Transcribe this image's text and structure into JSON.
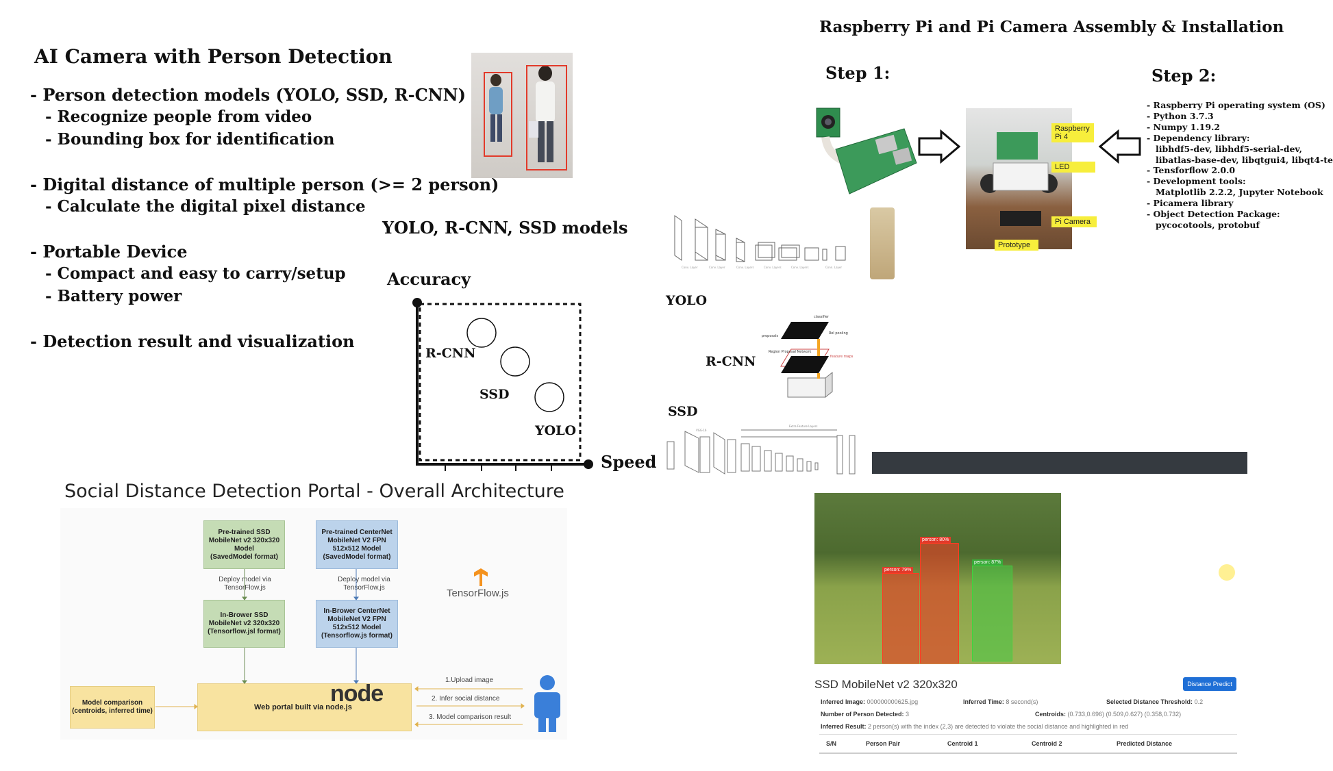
{
  "left_panel": {
    "title": "AI Camera with Person Detection",
    "items": [
      {
        "text": "- Person detection models (YOLO, SSD, R-CNN)"
      },
      {
        "text": "- Recognize people from video"
      },
      {
        "text": "- Bounding box for identification"
      },
      {
        "text": "- Digital distance of multiple person (>= 2 person)"
      },
      {
        "text": "- Calculate the digital pixel distance"
      },
      {
        "text": "- Portable Device"
      },
      {
        "text": "- Compact and easy to carry/setup"
      },
      {
        "text": "- Battery power"
      },
      {
        "text": "- Detection result and visualization"
      }
    ]
  },
  "models_chart": {
    "title": "YOLO, R-CNN, SSD models",
    "y_label": "Accuracy",
    "x_label": "Speed",
    "points": [
      {
        "label": "R-CNN"
      },
      {
        "label": "SSD"
      },
      {
        "label": "YOLO"
      }
    ]
  },
  "model_diagrams": {
    "yolo": "YOLO",
    "rcnn": "R-CNN",
    "ssd": "SSD"
  },
  "raspberry": {
    "title": "Raspberry Pi and Pi Camera Assembly & Installation",
    "step1": "Step 1:",
    "step2": "Step 2:",
    "labels": {
      "pi4": "Raspberry\nPi 4",
      "led": "LED",
      "pi_camera": "Pi Camera",
      "prototype": "Prototype"
    },
    "step2_list": [
      "- Raspberry Pi operating system (OS)",
      "- Python 3.7.3",
      "- Numpy 1.19.2",
      "- Dependency library:",
      "   libhdf5-dev, libhdf5-serial-dev,",
      "   libatlas-base-dev, libqtgui4, libqt4-te",
      "- Tensforflow 2.0.0",
      "- Development tools:",
      "   Matplotlib 2.2.2, Jupyter Notebook",
      "- Picamera library",
      "- Object Detection Package:",
      "   pycocotools, protobuf"
    ]
  },
  "architecture": {
    "title": "Social Distance Detection Portal - Overall Architecture",
    "box_ssd_pretrained": "Pre-trained SSD\nMobileNet v2 320x320\nModel\n(SavedModel format)",
    "box_centernet_pretrained": "Pre-trained CenterNet\nMobileNet V2 FPN\n512x512 Model\n(SavedModel format)",
    "deploy_note_1": "Deploy model via\nTensorFlow.js",
    "deploy_note_2": "Deploy model via\nTensorFlow.js",
    "box_ssd_browser": "In-Brower SSD\nMobileNet v2 320x320\n(Tensorflow.jsl format)",
    "box_centernet_browser": "In-Brower CenterNet\nMobileNet V2 FPN\n512x512 Model\n(Tensorflow.js format)",
    "tensorflow_label": "TensorFlow.js",
    "box_model_comparison": "Model comparison\n(centroids, inferred time)",
    "box_web_portal": "Web portal built via node.js",
    "node_logo": "node",
    "step_upload": "1.Upload image",
    "step_infer": "2. Infer social distance",
    "step_compare": "3. Model comparison result"
  },
  "portal": {
    "model_title": "SSD MobileNet v2 320x320",
    "predict_button": "Distance Predict",
    "detections": [
      {
        "label": "person: 79%"
      },
      {
        "label": "person: 80%"
      },
      {
        "label": "person: 87%"
      }
    ],
    "inferred_image_label": "Inferred Image:",
    "inferred_image_value": "000000000625.jpg",
    "inferred_time_label": "Inferred Time:",
    "inferred_time_value": "8 second(s)",
    "threshold_label": "Selected Distance Threshold:",
    "threshold_value": "0.2",
    "num_persons_label": "Number of Person Detected:",
    "num_persons_value": "3",
    "centroids_label": "Centroids:",
    "centroids_value": "(0.733,0.696) (0.509,0.627) (0.358,0.732)",
    "result_label": "Inferred Result:",
    "result_value": "2 person(s) with the index (2,3) are detected to violate the social distance and highlighted in red",
    "table_headers": [
      "S/N",
      "Person Pair",
      "Centroid 1",
      "Centroid 2",
      "Predicted Distance"
    ]
  },
  "colors": {
    "bbox_red": "#e23a2a",
    "label_yellow": "#f7ee3c",
    "green_box": "#c5dcb5",
    "blue_box": "#bcd3eb",
    "yellow_box": "#f8e3a0",
    "button_blue": "#1f6fd6",
    "dark_bar": "#353a40",
    "person_icon_blue": "#3a7fd9"
  }
}
